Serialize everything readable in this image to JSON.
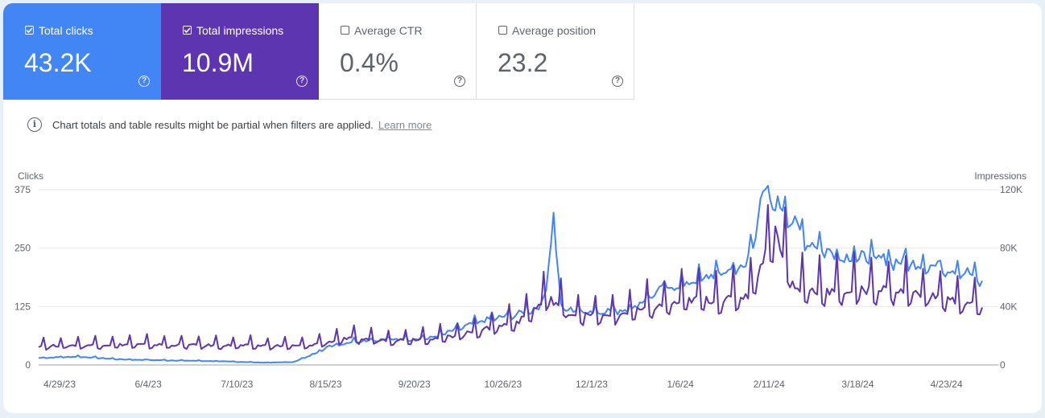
{
  "metrics": [
    {
      "label": "Total clicks",
      "value": "43.2K",
      "checked": true,
      "color": "#4285f4"
    },
    {
      "label": "Total impressions",
      "value": "10.9M",
      "checked": true,
      "color": "#5e35b1"
    },
    {
      "label": "Average CTR",
      "value": "0.4%",
      "checked": false,
      "color": "#ffffff"
    },
    {
      "label": "Average position",
      "value": "23.2",
      "checked": false,
      "color": "#ffffff"
    }
  ],
  "info": {
    "text": "Chart totals and table results might be partial when filters are applied.",
    "link": "Learn more"
  },
  "chart_data": {
    "type": "line",
    "left_axis": {
      "label": "Clicks",
      "ticks": [
        0,
        125,
        250,
        375
      ],
      "tick_labels": [
        "0",
        "125",
        "250",
        "375"
      ],
      "range": [
        0,
        375
      ]
    },
    "right_axis": {
      "label": "Impressions",
      "ticks": [
        0,
        40000,
        80000,
        120000
      ],
      "tick_labels": [
        "0",
        "40K",
        "80K",
        "120K"
      ],
      "range": [
        0,
        120000
      ]
    },
    "x_tick_labels": [
      "4/29/23",
      "6/4/23",
      "7/10/23",
      "8/15/23",
      "9/20/23",
      "10/26/23",
      "12/1/23",
      "1/6/24",
      "2/11/24",
      "3/18/24",
      "4/23/24"
    ],
    "x_range": [
      "2023-04-29",
      "2024-05-16"
    ],
    "grid": true,
    "series": [
      {
        "name": "Clicks",
        "axis": "left",
        "color": "#4285f4",
        "points": [
          [
            "2023-04-29",
            15
          ],
          [
            "2023-05-15",
            18
          ],
          [
            "2023-06-01",
            12
          ],
          [
            "2023-06-20",
            10
          ],
          [
            "2023-07-10",
            8
          ],
          [
            "2023-07-30",
            5
          ],
          [
            "2023-08-10",
            6
          ],
          [
            "2023-08-15",
            15
          ],
          [
            "2023-08-25",
            40
          ],
          [
            "2023-09-05",
            52
          ],
          [
            "2023-09-20",
            55
          ],
          [
            "2023-10-05",
            58
          ],
          [
            "2023-10-15",
            75
          ],
          [
            "2023-10-26",
            95
          ],
          [
            "2023-11-10",
            110
          ],
          [
            "2023-11-20",
            130
          ],
          [
            "2023-11-24",
            320
          ],
          [
            "2023-11-27",
            120
          ],
          [
            "2023-12-10",
            115
          ],
          [
            "2023-12-25",
            120
          ],
          [
            "2024-01-06",
            160
          ],
          [
            "2024-01-20",
            180
          ],
          [
            "2024-02-01",
            200
          ],
          [
            "2024-02-10",
            210
          ],
          [
            "2024-02-17",
            360
          ],
          [
            "2024-02-25",
            340
          ],
          [
            "2024-03-05",
            270
          ],
          [
            "2024-03-18",
            235
          ],
          [
            "2024-04-01",
            230
          ],
          [
            "2024-04-15",
            220
          ],
          [
            "2024-04-23",
            215
          ],
          [
            "2024-05-10",
            200
          ],
          [
            "2024-05-16",
            175
          ]
        ]
      },
      {
        "name": "Impressions",
        "axis": "right",
        "color": "#5e35b1",
        "points": [
          [
            "2023-04-29",
            13000
          ],
          [
            "2023-06-04",
            14000
          ],
          [
            "2023-07-10",
            13500
          ],
          [
            "2023-08-15",
            13000
          ],
          [
            "2023-09-01",
            18000
          ],
          [
            "2023-09-20",
            17000
          ],
          [
            "2023-10-10",
            18500
          ],
          [
            "2023-10-26",
            24000
          ],
          [
            "2023-11-10",
            30000
          ],
          [
            "2023-11-22",
            46000
          ],
          [
            "2023-12-01",
            35000
          ],
          [
            "2023-12-15",
            33000
          ],
          [
            "2024-01-06",
            40000
          ],
          [
            "2024-01-20",
            45000
          ],
          [
            "2024-02-01",
            44000
          ],
          [
            "2024-02-11",
            48000
          ],
          [
            "2024-02-22",
            92000
          ],
          [
            "2024-03-01",
            52000
          ],
          [
            "2024-03-18",
            50000
          ],
          [
            "2024-04-05",
            52000
          ],
          [
            "2024-04-23",
            48000
          ],
          [
            "2024-05-16",
            40000
          ]
        ]
      }
    ]
  }
}
